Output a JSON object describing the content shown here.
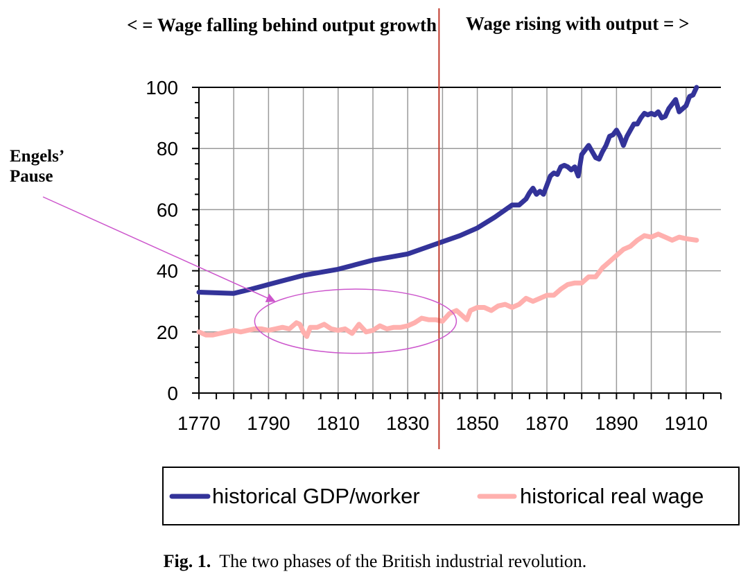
{
  "chart_data": {
    "type": "line",
    "headers": {
      "left": "< = Wage falling behind output growth",
      "right": "Wage rising with output = >"
    },
    "annotation": {
      "line1": "Engels’",
      "line2": "Pause"
    },
    "xlim": [
      1770,
      1920
    ],
    "ylim": [
      0,
      100
    ],
    "x_ticks": [
      1770,
      1790,
      1810,
      1830,
      1850,
      1870,
      1890,
      1910
    ],
    "y_ticks": [
      0,
      20,
      40,
      60,
      80,
      100
    ],
    "grid": true,
    "divider_x": 1839,
    "ellipse_region": {
      "x_range": [
        1790,
        1840
      ],
      "y_range": [
        13,
        34
      ]
    },
    "legend_position": "bottom",
    "colors": {
      "gdp": "#333399",
      "wage": "#ffb0ae",
      "divider": "#c0392b",
      "annotation": "#cc55cc",
      "grid": "#999999"
    },
    "series": [
      {
        "name": "historical GDP/worker",
        "color": "#333399",
        "x": [
          1770,
          1775,
          1780,
          1785,
          1790,
          1795,
          1800,
          1805,
          1810,
          1815,
          1820,
          1825,
          1830,
          1835,
          1840,
          1845,
          1850,
          1855,
          1860,
          1862,
          1864,
          1865,
          1866,
          1867,
          1868,
          1869,
          1870,
          1871,
          1872,
          1873,
          1874,
          1875,
          1876,
          1877,
          1878,
          1879,
          1880,
          1881,
          1882,
          1883,
          1884,
          1885,
          1886,
          1887,
          1888,
          1889,
          1890,
          1891,
          1892,
          1893,
          1894,
          1895,
          1896,
          1897,
          1898,
          1899,
          1900,
          1901,
          1902,
          1903,
          1904,
          1905,
          1906,
          1907,
          1908,
          1909,
          1910,
          1911,
          1912,
          1913
        ],
        "y": [
          33,
          32.8,
          32.6,
          34,
          35.5,
          37,
          38.5,
          39.5,
          40.5,
          42,
          43.5,
          44.5,
          45.5,
          47.5,
          49.5,
          51.5,
          54,
          57.5,
          61.5,
          61.5,
          63.5,
          65.5,
          67,
          65,
          66,
          65,
          68,
          71,
          72,
          71.5,
          74,
          74.5,
          74,
          73,
          74,
          71,
          78,
          79.5,
          81,
          79,
          77,
          76.5,
          79,
          81,
          84,
          84.5,
          86,
          84,
          81,
          84,
          86,
          88,
          88,
          90,
          91.5,
          91,
          91.5,
          91,
          92,
          90,
          90.5,
          93,
          94.5,
          96,
          92,
          93,
          94,
          97,
          97.5,
          100
        ]
      },
      {
        "name": "historical real wage",
        "color": "#ffb0ae",
        "x": [
          1770,
          1772,
          1774,
          1776,
          1778,
          1780,
          1782,
          1784,
          1786,
          1788,
          1790,
          1792,
          1794,
          1796,
          1798,
          1799,
          1800,
          1801,
          1802,
          1804,
          1806,
          1808,
          1810,
          1812,
          1814,
          1816,
          1818,
          1820,
          1822,
          1824,
          1826,
          1828,
          1830,
          1832,
          1834,
          1836,
          1838,
          1840,
          1842,
          1844,
          1846,
          1847,
          1848,
          1850,
          1852,
          1854,
          1856,
          1858,
          1860,
          1862,
          1864,
          1866,
          1868,
          1870,
          1872,
          1874,
          1876,
          1878,
          1880,
          1882,
          1884,
          1886,
          1888,
          1890,
          1892,
          1894,
          1896,
          1898,
          1900,
          1902,
          1904,
          1906,
          1908,
          1910,
          1913
        ],
        "y": [
          20,
          19,
          19,
          19.5,
          20,
          20.5,
          20,
          20.5,
          21,
          21,
          20.5,
          21,
          21.5,
          21,
          23,
          22.5,
          20,
          18.5,
          21.5,
          21.5,
          22.5,
          21,
          20.5,
          21,
          19.5,
          22.5,
          20,
          20.5,
          22,
          21,
          21.5,
          21.5,
          22,
          23,
          24.5,
          24,
          24,
          23.5,
          26,
          27,
          25,
          24,
          27,
          28,
          28,
          27,
          28.5,
          29,
          28,
          29,
          31,
          30,
          31,
          32,
          32,
          34,
          35.5,
          36,
          36,
          38,
          38,
          41,
          43,
          45,
          47,
          48,
          50,
          51.5,
          51,
          52,
          51,
          50,
          51,
          50.5,
          50
        ]
      }
    ],
    "legend": {
      "gdp_label": "historical GDP/worker",
      "wage_label": "historical real wage"
    },
    "caption": {
      "label": "Fig. 1.",
      "text": "The two phases of the British industrial revolution."
    }
  }
}
